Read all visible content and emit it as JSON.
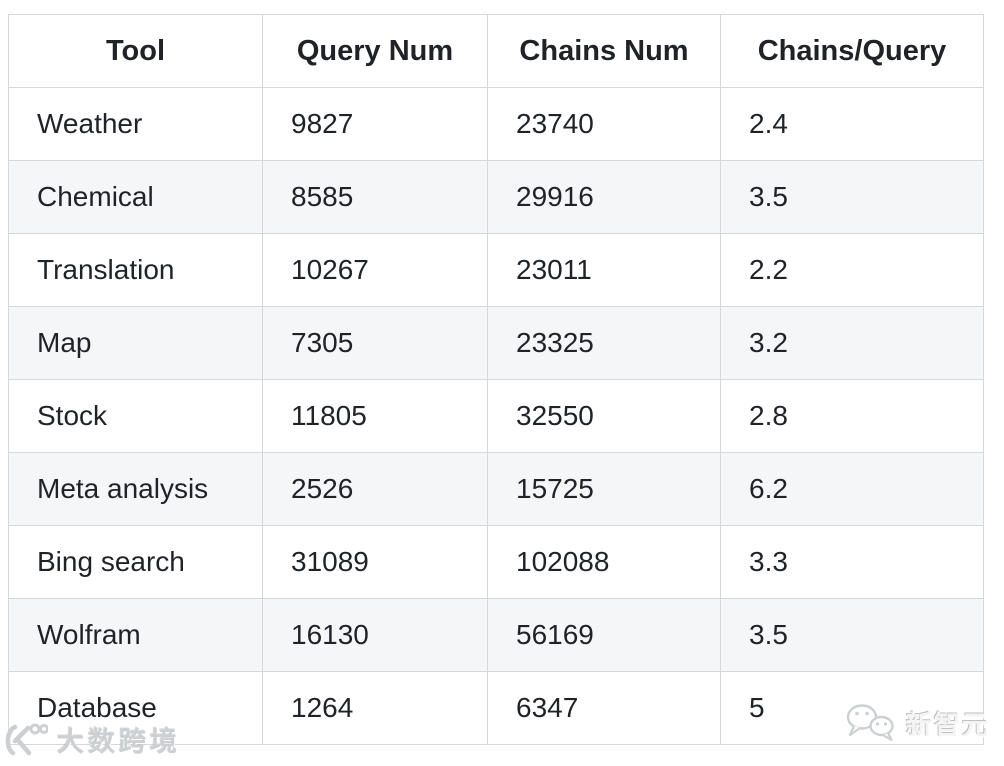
{
  "chart_data": {
    "type": "table",
    "columns": [
      "Tool",
      "Query Num",
      "Chains Num",
      "Chains/Query"
    ],
    "rows": [
      [
        "Weather",
        9827,
        23740,
        2.4
      ],
      [
        "Chemical",
        8585,
        29916,
        3.5
      ],
      [
        "Translation",
        10267,
        23011,
        2.2
      ],
      [
        "Map",
        7305,
        23325,
        3.2
      ],
      [
        "Stock",
        11805,
        32550,
        2.8
      ],
      [
        "Meta analysis",
        2526,
        15725,
        6.2
      ],
      [
        "Bing search",
        31089,
        102088,
        3.3
      ],
      [
        "Wolfram",
        16130,
        56169,
        3.5
      ],
      [
        "Database",
        1264,
        6347,
        5
      ]
    ],
    "layout": {
      "striped": true,
      "header_align": "center",
      "body_align": "left",
      "grid": true
    }
  },
  "watermarks": {
    "bottom_left": {
      "icon": "brand-logo",
      "text": "大数跨境"
    },
    "bottom_right": {
      "icon": "wechat-bubbles",
      "text": "新智元"
    }
  },
  "colors": {
    "text": "#1f2328",
    "background": "#ffffff",
    "row_stripe": "#f4f6f8",
    "border": "#d3d8dc",
    "watermark_gray": "#ccd0d3"
  }
}
